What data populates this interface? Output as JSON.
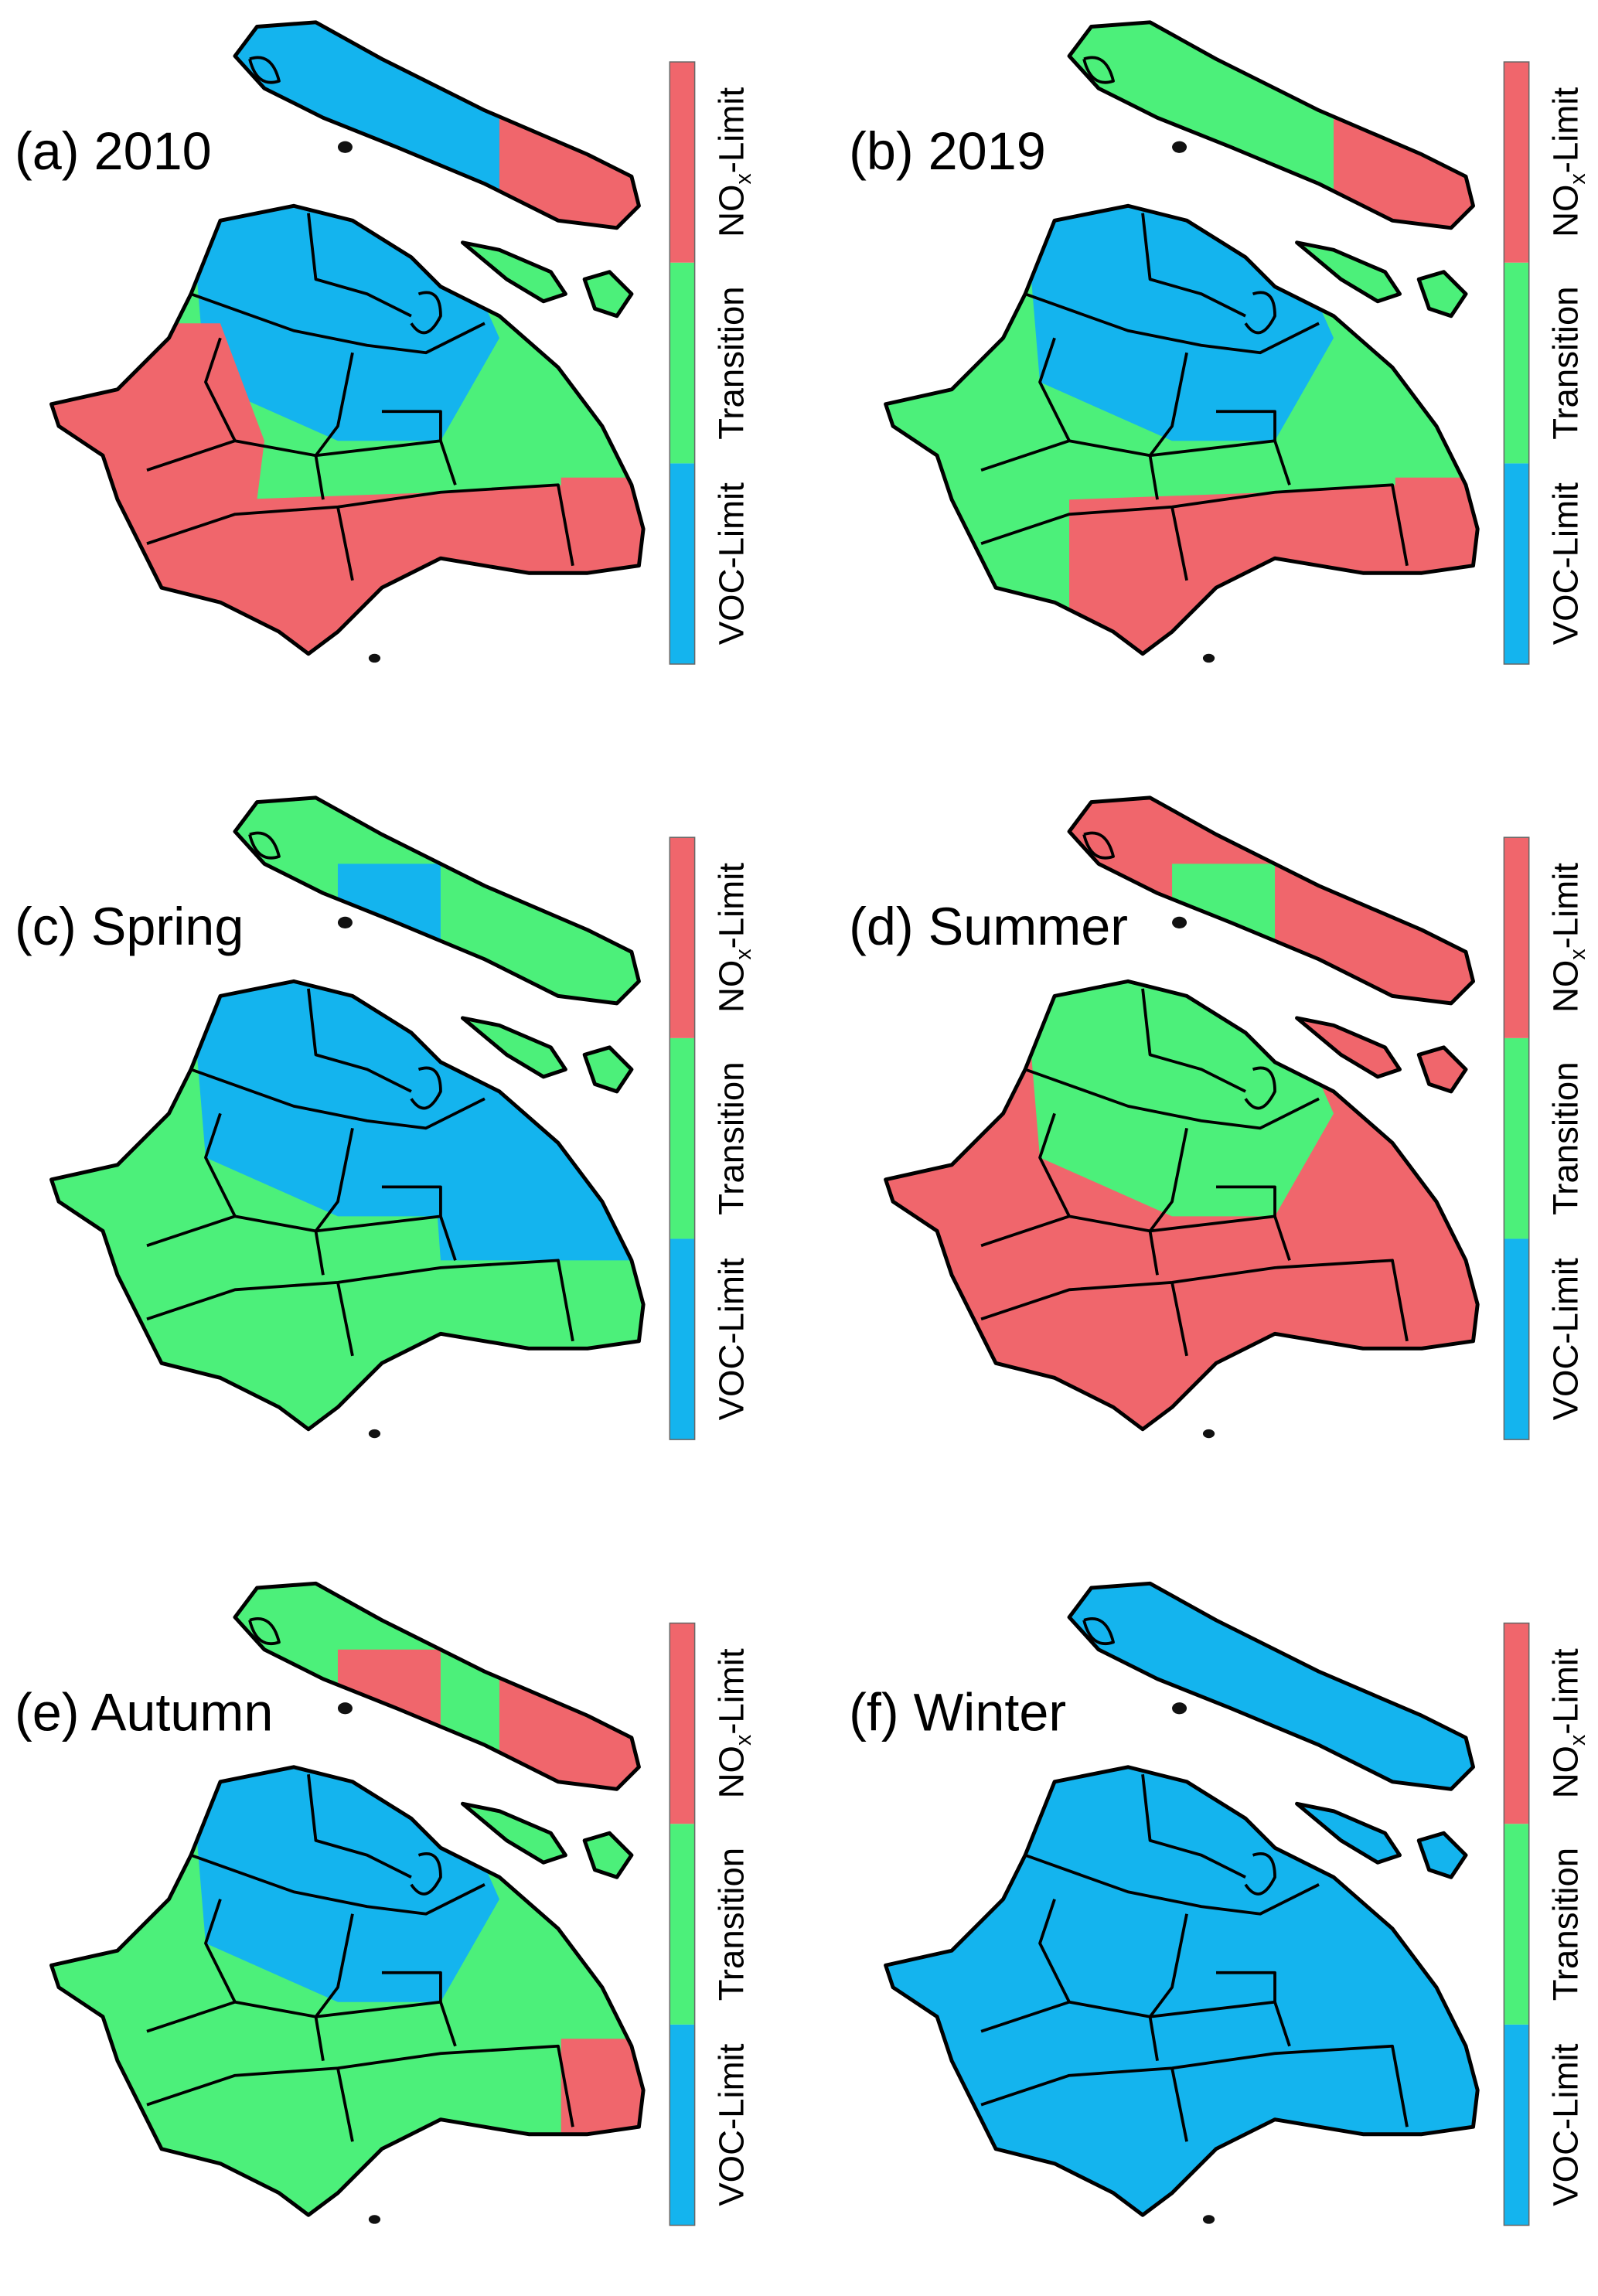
{
  "panels": [
    {
      "label": "(a) 2010"
    },
    {
      "label": "(b) 2019"
    },
    {
      "label": "(c) Spring"
    },
    {
      "label": "(d) Summer"
    },
    {
      "label": "(e) Autumn"
    },
    {
      "label": "(f) Winter"
    }
  ],
  "colorbar": {
    "labels": [
      [
        "VOC-Limit"
      ],
      [
        "Transition"
      ],
      [
        "NO",
        "x",
        "-Limit"
      ]
    ],
    "colors": [
      "#14b4ee",
      "#4cf07a",
      "#f0666c"
    ]
  }
}
